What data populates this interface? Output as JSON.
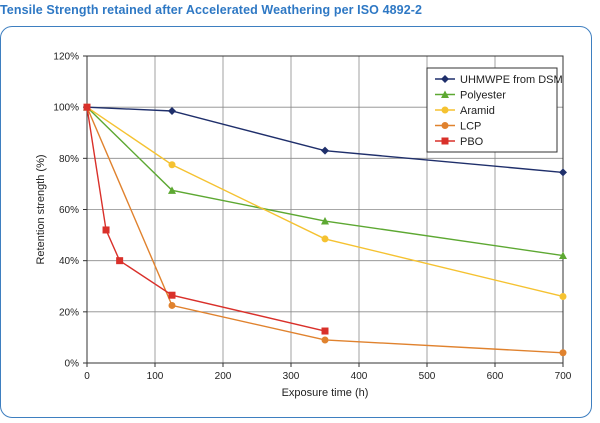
{
  "page": {
    "title": "Tensile Strength retained after Accelerated Weathering per ISO 4892-2",
    "title_color": "#2e78c4"
  },
  "chart_data": {
    "type": "line",
    "xlabel": "Exposure time (h)",
    "ylabel": "Retention strength (%)",
    "xlim": [
      0,
      700
    ],
    "ylim": [
      0,
      120
    ],
    "x_ticks": [
      "0",
      "100",
      "200",
      "300",
      "400",
      "500",
      "600",
      "700"
    ],
    "y_ticks": [
      "0%",
      "20%",
      "40%",
      "60%",
      "80%",
      "100%",
      "120%"
    ],
    "grid": "vertical and horizontal",
    "legend_position": "top-right",
    "series": [
      {
        "name": "UHMWPE from DSM",
        "color": "#1f2f6b",
        "marker": "diamond",
        "x": [
          0,
          125,
          350,
          700
        ],
        "y": [
          100,
          98.5,
          83,
          74.5
        ]
      },
      {
        "name": "Polyester",
        "color": "#5da832",
        "marker": "triangle",
        "x": [
          0,
          125,
          350,
          700
        ],
        "y": [
          100,
          67.5,
          55.5,
          42
        ]
      },
      {
        "name": "Aramid",
        "color": "#f5c231",
        "marker": "circle",
        "x": [
          0,
          125,
          350,
          700
        ],
        "y": [
          100,
          77.5,
          48.5,
          26
        ]
      },
      {
        "name": "LCP",
        "color": "#e0822e",
        "marker": "circle",
        "x": [
          0,
          125,
          350,
          700
        ],
        "y": [
          100,
          22.5,
          9,
          4
        ]
      },
      {
        "name": "PBO",
        "color": "#d9302a",
        "marker": "square",
        "x": [
          0,
          28,
          48,
          125,
          350
        ],
        "y": [
          100,
          52,
          40,
          26.5,
          12.5
        ]
      }
    ]
  }
}
